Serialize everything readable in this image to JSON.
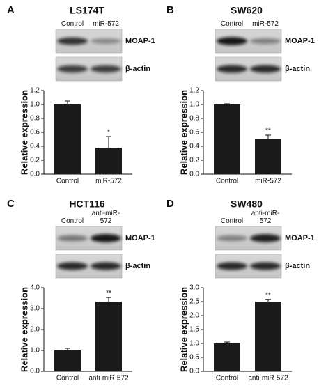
{
  "chart_data": [
    {
      "type": "bar",
      "panel": "A",
      "title": "LS174T",
      "lanes": [
        "Control",
        "miR-572"
      ],
      "bands": [
        "MOAP-1",
        "β-actin"
      ],
      "ylabel": "Relative expression",
      "categories": [
        "Control",
        "miR-572"
      ],
      "values": [
        1.0,
        0.38
      ],
      "errors": [
        0.05,
        0.16
      ],
      "significance": [
        null,
        "*"
      ],
      "color": "#1a1a1a",
      "ylim": [
        0,
        1.2
      ],
      "yticks": [
        {
          "value": 0,
          "label": "0.0"
        },
        0.2,
        0.4,
        0.6,
        0.8,
        {
          "value": 1,
          "label": "1.0"
        },
        1.2
      ]
    },
    {
      "type": "bar",
      "panel": "B",
      "title": "SW620",
      "lanes": [
        "Control",
        "miR-572"
      ],
      "bands": [
        "MOAP-1",
        "β-actin"
      ],
      "ylabel": "Relative expression",
      "categories": [
        "Control",
        "miR-572"
      ],
      "values": [
        1.0,
        0.5
      ],
      "errors": [
        0.01,
        0.06
      ],
      "significance": [
        null,
        "**"
      ],
      "color": "#1a1a1a",
      "ylim": [
        0,
        1.2
      ],
      "yticks": [
        {
          "value": 0,
          "label": "0.0"
        },
        0.2,
        0.4,
        0.6,
        0.8,
        {
          "value": 1,
          "label": "1.0"
        },
        1.2
      ]
    },
    {
      "type": "bar",
      "panel": "C",
      "title": "HCT116",
      "lanes": [
        "Control",
        "anti-miR-572"
      ],
      "bands": [
        "MOAP-1",
        "β-actin"
      ],
      "ylabel": "Relative expression",
      "categories": [
        "Control",
        "anti-miR-572"
      ],
      "values": [
        1.0,
        3.33
      ],
      "errors": [
        0.1,
        0.2
      ],
      "significance": [
        null,
        "**"
      ],
      "color": "#1a1a1a",
      "ylim": [
        0,
        4
      ],
      "yticks": [
        {
          "value": 0,
          "label": "0.0"
        },
        {
          "value": 1,
          "label": "1.0"
        },
        {
          "value": 2,
          "label": "2.0"
        },
        {
          "value": 3,
          "label": "3.0"
        },
        {
          "value": 4,
          "label": "4.0"
        }
      ]
    },
    {
      "type": "bar",
      "panel": "D",
      "title": "SW480",
      "lanes": [
        "Control",
        "anti-miR-572"
      ],
      "bands": [
        "MOAP-1",
        "β-actin"
      ],
      "ylabel": "Relative expression",
      "categories": [
        "Control",
        "anti-miR-572"
      ],
      "values": [
        1.0,
        2.5
      ],
      "errors": [
        0.05,
        0.08
      ],
      "significance": [
        null,
        "**"
      ],
      "color": "#1a1a1a",
      "ylim": [
        0,
        3
      ],
      "yticks": [
        {
          "value": 0,
          "label": "0.0"
        },
        0.5,
        {
          "value": 1,
          "label": "1.0"
        },
        1.5,
        {
          "value": 2,
          "label": "2.0"
        },
        2.5,
        {
          "value": 3,
          "label": "3.0"
        }
      ]
    }
  ]
}
